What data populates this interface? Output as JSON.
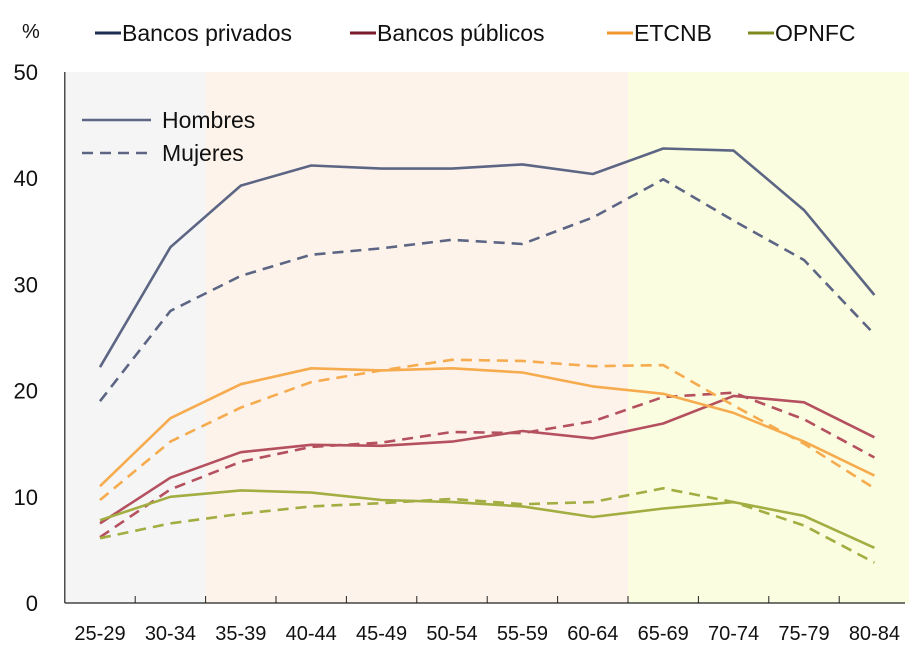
{
  "chart_data": {
    "type": "line",
    "ylabel": "%",
    "ylim": [
      0,
      50
    ],
    "yticks": [
      0,
      10,
      20,
      30,
      40,
      50
    ],
    "grid": false,
    "categories": [
      "25-29",
      "30-34",
      "35-39",
      "40-44",
      "45-49",
      "50-54",
      "55-59",
      "60-64",
      "65-69",
      "70-74",
      "75-79",
      "80-84"
    ],
    "shaded_ranges": [
      {
        "from": "25-29",
        "to": "30-34",
        "color": "#f5f5f5"
      },
      {
        "from": "35-39",
        "to": "60-64",
        "color": "#fdf3ea"
      },
      {
        "from": "65-69",
        "to": "80-84",
        "color": "#fbfde0"
      }
    ],
    "legend_top": [
      {
        "name": "Bancos privados",
        "color": "#1f2d52"
      },
      {
        "name": "Bancos públicos",
        "color": "#7a1a2c"
      },
      {
        "name": "ETCNB",
        "color": "#f0982c"
      },
      {
        "name": "OPNFC",
        "color": "#7e8a1e"
      }
    ],
    "legend_style": {
      "placement": "top-left",
      "solid": "Hombres",
      "dashed": "Mujeres"
    },
    "series": [
      {
        "group": "Bancos privados",
        "sex": "Hombres",
        "color": "#5c6684",
        "dashed": false,
        "values": [
          22.2,
          33.5,
          39.3,
          41.2,
          40.9,
          40.9,
          41.3,
          40.4,
          42.8,
          42.6,
          37.0,
          29.0
        ]
      },
      {
        "group": "Bancos privados",
        "sex": "Mujeres",
        "color": "#5c6684",
        "dashed": true,
        "values": [
          19.0,
          27.5,
          30.8,
          32.8,
          33.4,
          34.2,
          33.8,
          36.3,
          39.9,
          36.0,
          32.3,
          25.3
        ]
      },
      {
        "group": "Bancos públicos",
        "sex": "Hombres",
        "color": "#b5505f",
        "dashed": false,
        "values": [
          7.5,
          11.8,
          14.2,
          14.9,
          14.8,
          15.2,
          16.2,
          15.5,
          16.9,
          19.5,
          18.9,
          15.6
        ]
      },
      {
        "group": "Bancos públicos",
        "sex": "Mujeres",
        "color": "#b5505f",
        "dashed": true,
        "values": [
          6.2,
          10.7,
          13.3,
          14.7,
          15.1,
          16.1,
          16.0,
          17.1,
          19.4,
          19.8,
          17.3,
          13.7
        ]
      },
      {
        "group": "ETCNB",
        "sex": "Hombres",
        "color": "#f6ab4e",
        "dashed": false,
        "values": [
          11.0,
          17.4,
          20.6,
          22.1,
          21.9,
          22.1,
          21.7,
          20.4,
          19.7,
          17.9,
          15.2,
          12.0
        ]
      },
      {
        "group": "ETCNB",
        "sex": "Mujeres",
        "color": "#f6ab4e",
        "dashed": true,
        "values": [
          9.7,
          15.2,
          18.4,
          20.8,
          21.9,
          22.9,
          22.8,
          22.3,
          22.4,
          18.6,
          15.0,
          10.8
        ]
      },
      {
        "group": "OPNFC",
        "sex": "Hombres",
        "color": "#a2ad42",
        "dashed": false,
        "values": [
          7.8,
          10.0,
          10.6,
          10.4,
          9.7,
          9.5,
          9.1,
          8.1,
          8.9,
          9.5,
          8.2,
          5.2
        ]
      },
      {
        "group": "OPNFC",
        "sex": "Mujeres",
        "color": "#a2ad42",
        "dashed": true,
        "values": [
          6.1,
          7.5,
          8.4,
          9.1,
          9.4,
          9.8,
          9.3,
          9.5,
          10.8,
          9.5,
          7.3,
          3.8
        ]
      }
    ]
  }
}
